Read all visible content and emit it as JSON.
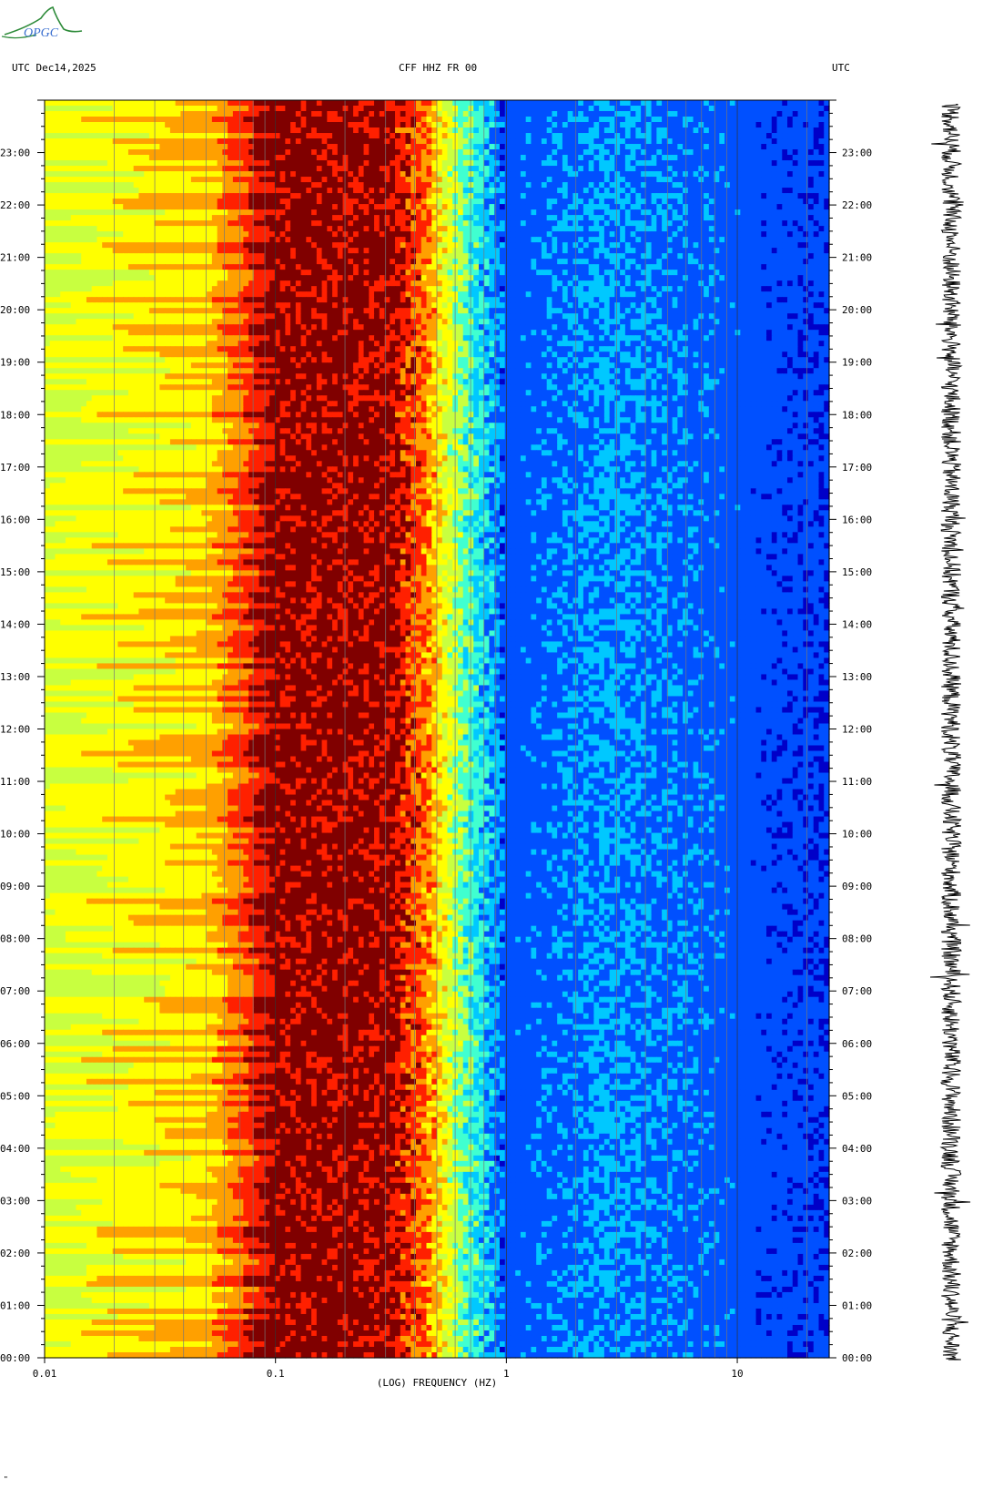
{
  "header": {
    "logo_text": "OPGC",
    "left_label": "UTC  Dec14,2025",
    "center_label": "CFF HHZ FR 00",
    "right_label": "UTC"
  },
  "footer_mark": "\"",
  "chart_data": {
    "type": "heatmap",
    "title": "CFF HHZ FR 00",
    "date": "Dec14,2025",
    "xlabel": "(LOG) FREQUENCY (HZ)",
    "ylabel": "UTC",
    "xscale": "log",
    "xlim": [
      0.01,
      25
    ],
    "ylim": [
      "00:00",
      "24:00"
    ],
    "x_ticks": [
      "0.01",
      "0.1",
      "1",
      "10"
    ],
    "y_ticks": [
      "00:00",
      "01:00",
      "02:00",
      "03:00",
      "04:00",
      "05:00",
      "06:00",
      "07:00",
      "08:00",
      "09:00",
      "10:00",
      "11:00",
      "12:00",
      "13:00",
      "14:00",
      "15:00",
      "16:00",
      "17:00",
      "18:00",
      "19:00",
      "20:00",
      "21:00",
      "22:00",
      "23:00"
    ],
    "colormap": [
      "#0000c8",
      "#0050ff",
      "#00c8ff",
      "#40ffd0",
      "#c8ff40",
      "#ffff00",
      "#ffa000",
      "#ff2000",
      "#800000"
    ],
    "power_profile": [
      {
        "freq": 0.01,
        "level": 0.55
      },
      {
        "freq": 0.024,
        "level": 0.62
      },
      {
        "freq": 0.05,
        "level": 0.68
      },
      {
        "freq": 0.07,
        "level": 0.82
      },
      {
        "freq": 0.1,
        "level": 1.0
      },
      {
        "freq": 0.3,
        "level": 1.0
      },
      {
        "freq": 0.45,
        "level": 0.78
      },
      {
        "freq": 0.65,
        "level": 0.42
      },
      {
        "freq": 1,
        "level": 0.12
      },
      {
        "freq": 2.7,
        "level": 0.2
      },
      {
        "freq": 25,
        "level": 0.08
      }
    ],
    "seismogram": {
      "label": "HHZ trace",
      "time_range": [
        "00:00",
        "24:00"
      ]
    }
  }
}
